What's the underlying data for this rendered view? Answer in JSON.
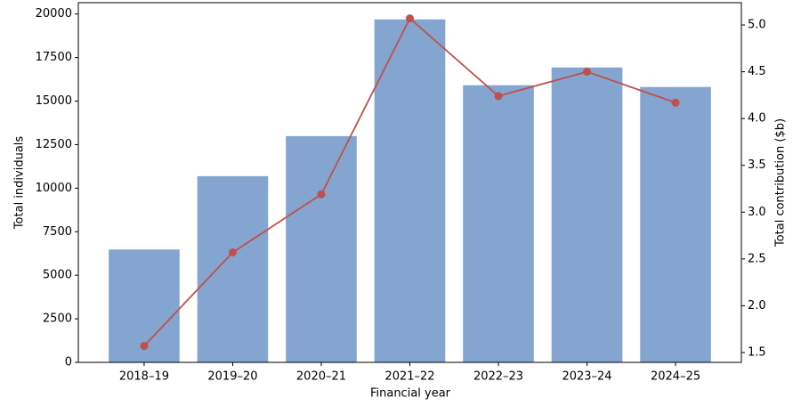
{
  "chart_data": {
    "type": "bar-line",
    "categories": [
      "2018–19",
      "2019–20",
      "2020–21",
      "2021–22",
      "2022–23",
      "2023–24",
      "2024–25"
    ],
    "series": [
      {
        "type": "bar",
        "color": "#84a5cf",
        "values": [
          6480,
          10690,
          12990,
          19690,
          15910,
          16930,
          15810
        ]
      },
      {
        "type": "line",
        "axis": "y2",
        "color": "#c0504d",
        "values": [
          1.57,
          2.57,
          3.19,
          5.07,
          4.24,
          4.5,
          4.17
        ]
      }
    ],
    "xlabel": "Financial year",
    "ylabel": "Total individuals",
    "y2label": "Total contribution ($b)",
    "ylim": [
      0,
      20650
    ],
    "yticks": [
      0,
      2500,
      5000,
      7500,
      10000,
      12500,
      15000,
      17500,
      20000
    ],
    "y2lim": [
      1.395,
      5.238
    ],
    "y2ticks": [
      1.5,
      {
        "value": 2,
        "label": "2.0"
      },
      2.5,
      {
        "value": 3,
        "label": "3.0"
      },
      3.5,
      {
        "value": 4,
        "label": "4.0"
      },
      4.5,
      {
        "value": 5,
        "label": "5.0"
      }
    ]
  }
}
